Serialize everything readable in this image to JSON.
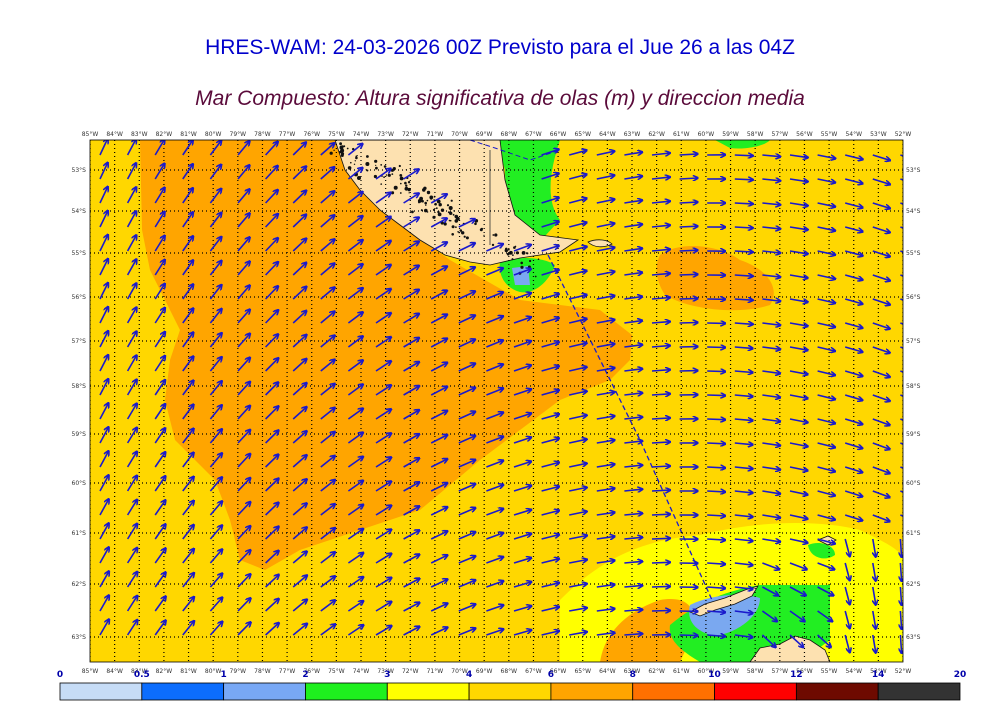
{
  "title": "HRES-WAM: 24-03-2026 00Z Previsto para el Jue 26 a las 04Z",
  "subtitle": "Mar Compuesto: Altura significativa de olas (m) y direccion media",
  "map": {
    "lon_labels": [
      "85°W",
      "84°W",
      "83°W",
      "82°W",
      "81°W",
      "80°W",
      "79°W",
      "78°W",
      "77°W",
      "76°W",
      "75°W",
      "74°W",
      "73°W",
      "72°W",
      "71°W",
      "70°W",
      "69°W",
      "68°W",
      "67°W",
      "66°W",
      "65°W",
      "64°W",
      "63°W",
      "62°W",
      "61°W",
      "60°W",
      "59°W",
      "58°W",
      "57°W",
      "56°W",
      "55°W",
      "54°W",
      "53°W",
      "52°W"
    ],
    "lat_labels": [
      "53°S",
      "54°S",
      "55°S",
      "56°S",
      "57°S",
      "58°S",
      "59°S",
      "60°S",
      "61°S",
      "62°S",
      "63°S"
    ],
    "colors": {
      "yellow": "#ffff00",
      "gold": "#ffd700",
      "orange": "#ffa500",
      "darkorange": "#ff7f00",
      "green": "#22ee22",
      "land": "#fde1b0",
      "arrow": "#1a1acc",
      "lightblue": "#7aa8f0"
    }
  },
  "colorbar": {
    "ticks": [
      "0",
      "0.5",
      "1",
      "2",
      "3",
      "4",
      "6",
      "8",
      "10",
      "12",
      "14",
      "20"
    ],
    "colors": [
      "#c6dcf6",
      "#0c6dfd",
      "#78a8f5",
      "#1ef01e",
      "#ffff00",
      "#ffd700",
      "#ffa500",
      "#ff7000",
      "#ff0000",
      "#6e0a00",
      "#333333"
    ]
  }
}
